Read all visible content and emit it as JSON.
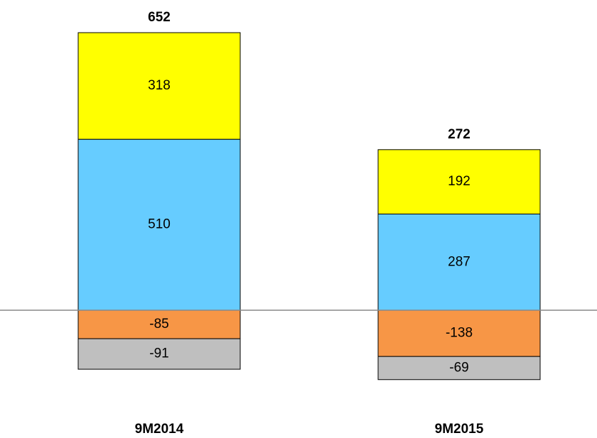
{
  "chart_data": {
    "type": "bar",
    "stacked": true,
    "categories": [
      "9M2014",
      "9M2015"
    ],
    "totals": [
      652,
      272
    ],
    "series": [
      {
        "color": "#66ccff",
        "values": [
          510,
          287
        ]
      },
      {
        "color": "#ffff00",
        "values": [
          318,
          192
        ]
      },
      {
        "color": "#f79646",
        "values": [
          -85,
          -138
        ]
      },
      {
        "color": "#bfbfbf",
        "values": [
          -91,
          -69
        ]
      }
    ]
  }
}
